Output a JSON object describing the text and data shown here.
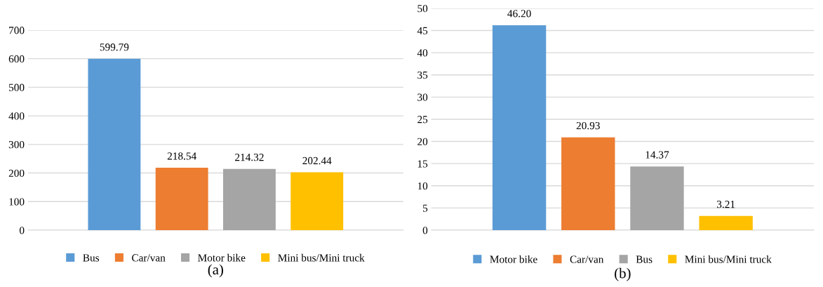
{
  "chart_data": [
    {
      "type": "bar",
      "xlabel": "(a)",
      "categories": [
        null
      ],
      "ylim": [
        0,
        700
      ],
      "yticks": [
        0,
        100,
        200,
        300,
        400,
        500,
        600,
        700
      ],
      "grid": "y",
      "legend": "bottom",
      "tick_labels": "y",
      "series": [
        {
          "name": "Bus",
          "color": "#5b9bd5",
          "values": [
            599.79
          ],
          "value_labels": [
            "599.79"
          ]
        },
        {
          "name": "Car/van",
          "color": "#ed7d31",
          "values": [
            218.54
          ],
          "value_labels": [
            "218.54"
          ]
        },
        {
          "name": "Motor bike",
          "color": "#a5a5a5",
          "values": [
            214.32
          ],
          "value_labels": [
            "214.32"
          ]
        },
        {
          "name": "Mini bus/Mini truck",
          "color": "#ffc000",
          "values": [
            202.44
          ],
          "value_labels": [
            "202.44"
          ]
        }
      ]
    },
    {
      "type": "bar",
      "xlabel": "(b)",
      "categories": [
        null
      ],
      "ylim": [
        0,
        50
      ],
      "yticks": [
        0,
        5,
        10,
        15,
        20,
        25,
        30,
        35,
        40,
        45,
        50
      ],
      "grid": "y",
      "legend": "bottom",
      "tick_labels": "y",
      "series": [
        {
          "name": "Motor bike",
          "color": "#5b9bd5",
          "values": [
            46.2
          ],
          "value_labels": [
            "46.20"
          ]
        },
        {
          "name": "Car/van",
          "color": "#ed7d31",
          "values": [
            20.93
          ],
          "value_labels": [
            "20.93"
          ]
        },
        {
          "name": "Bus",
          "color": "#a5a5a5",
          "values": [
            14.37
          ],
          "value_labels": [
            "14.37"
          ]
        },
        {
          "name": "Mini bus/Mini truck",
          "color": "#ffc000",
          "values": [
            3.21
          ],
          "value_labels": [
            "3.21"
          ]
        }
      ]
    }
  ]
}
